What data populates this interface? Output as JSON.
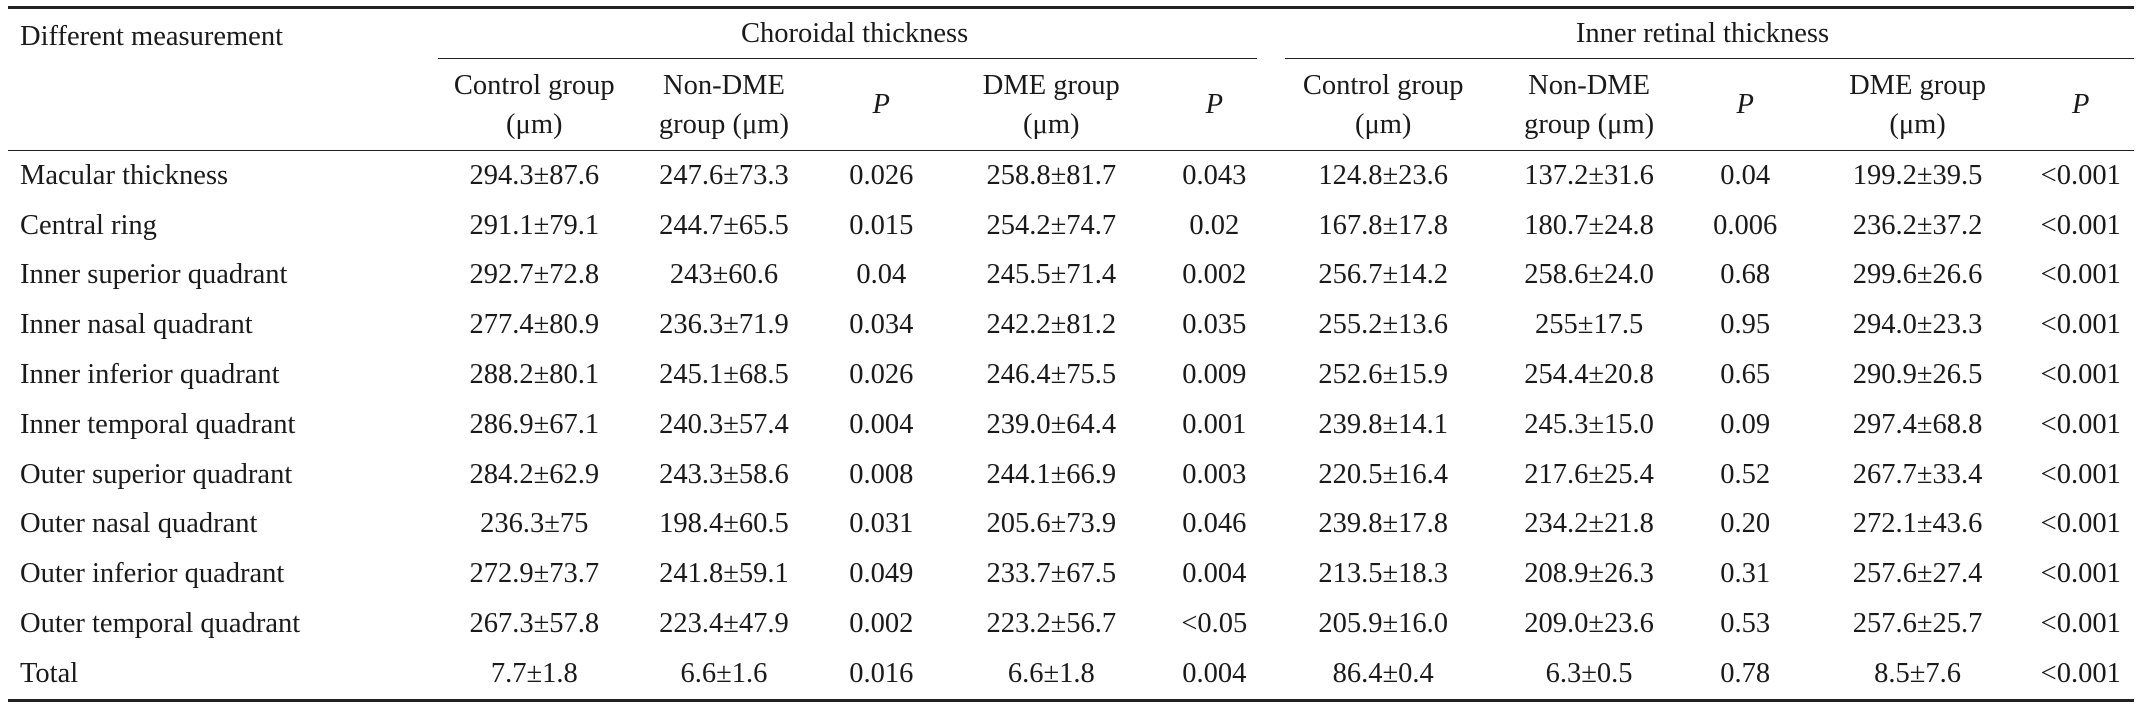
{
  "table": {
    "row_header": "Different measurement",
    "groups": [
      {
        "label": "Choroidal thickness"
      },
      {
        "label": "Inner retinal thickness"
      }
    ],
    "subheaders": [
      {
        "line1": "Control group",
        "line2": "(μm)"
      },
      {
        "line1": "Non-DME",
        "line2": "group (μm)"
      },
      {
        "line1": "P",
        "line2": ""
      },
      {
        "line1": "DME group",
        "line2": "(μm)"
      },
      {
        "line1": "P",
        "line2": ""
      },
      {
        "line1": "Control group",
        "line2": "(μm)"
      },
      {
        "line1": "Non-DME",
        "line2": "group (μm)"
      },
      {
        "line1": "P",
        "line2": ""
      },
      {
        "line1": "DME group",
        "line2": "(μm)"
      },
      {
        "line1": "P",
        "line2": ""
      }
    ],
    "rows": [
      {
        "label": "Macular thickness",
        "cells": [
          "294.3±87.6",
          "247.6±73.3",
          "0.026",
          "258.8±81.7",
          "0.043",
          "124.8±23.6",
          "137.2±31.6",
          "0.04",
          "199.2±39.5",
          "<0.001"
        ]
      },
      {
        "label": "Central ring",
        "cells": [
          "291.1±79.1",
          "244.7±65.5",
          "0.015",
          "254.2±74.7",
          "0.02",
          "167.8±17.8",
          "180.7±24.8",
          "0.006",
          "236.2±37.2",
          "<0.001"
        ]
      },
      {
        "label": "Inner superior quadrant",
        "cells": [
          "292.7±72.8",
          "243±60.6",
          "0.04",
          "245.5±71.4",
          "0.002",
          "256.7±14.2",
          "258.6±24.0",
          "0.68",
          "299.6±26.6",
          "<0.001"
        ]
      },
      {
        "label": "Inner nasal quadrant",
        "cells": [
          "277.4±80.9",
          "236.3±71.9",
          "0.034",
          "242.2±81.2",
          "0.035",
          "255.2±13.6",
          "255±17.5",
          "0.95",
          "294.0±23.3",
          "<0.001"
        ]
      },
      {
        "label": "Inner inferior quadrant",
        "cells": [
          "288.2±80.1",
          "245.1±68.5",
          "0.026",
          "246.4±75.5",
          "0.009",
          "252.6±15.9",
          "254.4±20.8",
          "0.65",
          "290.9±26.5",
          "<0.001"
        ]
      },
      {
        "label": "Inner temporal quadrant",
        "cells": [
          "286.9±67.1",
          "240.3±57.4",
          "0.004",
          "239.0±64.4",
          "0.001",
          "239.8±14.1",
          "245.3±15.0",
          "0.09",
          "297.4±68.8",
          "<0.001"
        ]
      },
      {
        "label": "Outer superior quadrant",
        "cells": [
          "284.2±62.9",
          "243.3±58.6",
          "0.008",
          "244.1±66.9",
          "0.003",
          "220.5±16.4",
          "217.6±25.4",
          "0.52",
          "267.7±33.4",
          "<0.001"
        ]
      },
      {
        "label": "Outer nasal quadrant",
        "cells": [
          "236.3±75",
          "198.4±60.5",
          "0.031",
          "205.6±73.9",
          "0.046",
          "239.8±17.8",
          "234.2±21.8",
          "0.20",
          "272.1±43.6",
          "<0.001"
        ]
      },
      {
        "label": "Outer inferior quadrant",
        "cells": [
          "272.9±73.7",
          "241.8±59.1",
          "0.049",
          "233.7±67.5",
          "0.004",
          "213.5±18.3",
          "208.9±26.3",
          "0.31",
          "257.6±27.4",
          "<0.001"
        ]
      },
      {
        "label": "Outer temporal quadrant",
        "cells": [
          "267.3±57.8",
          "223.4±47.9",
          "0.002",
          "223.2±56.7",
          "<0.05",
          "205.9±16.0",
          "209.0±23.6",
          "0.53",
          "257.6±25.7",
          "<0.001"
        ]
      },
      {
        "label": "Total",
        "cells": [
          "7.7±1.8",
          "6.6±1.6",
          "0.016",
          "6.6±1.8",
          "0.004",
          "86.4±0.4",
          "6.3±0.5",
          "0.78",
          "8.5±7.6",
          "<0.001"
        ]
      }
    ]
  }
}
